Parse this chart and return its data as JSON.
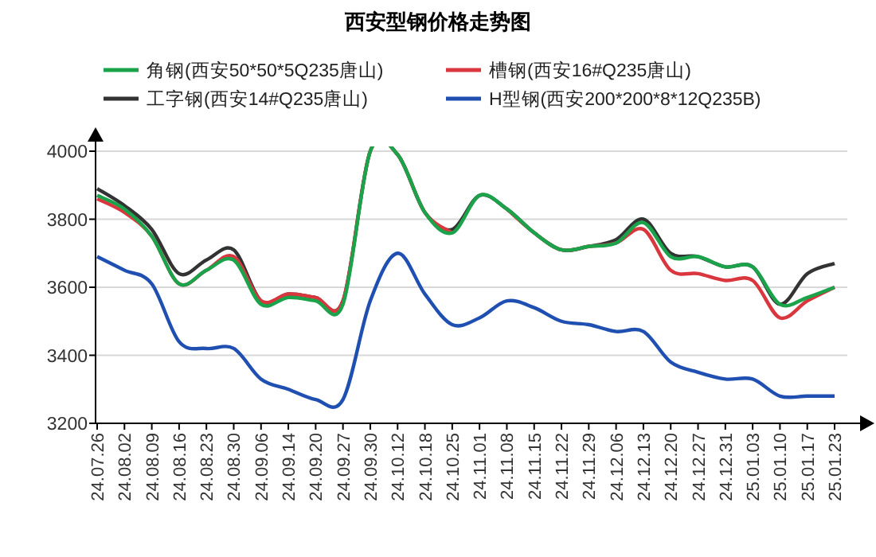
{
  "chart_data": {
    "type": "line",
    "title": "西安型钢价格走势图",
    "categories": [
      "24.07.26",
      "24.08.02",
      "24.08.09",
      "24.08.16",
      "24.08.23",
      "24.08.30",
      "24.09.06",
      "24.09.14",
      "24.09.20",
      "24.09.27",
      "24.09.30",
      "24.10.12",
      "24.10.18",
      "24.10.25",
      "24.11.01",
      "24.11.08",
      "24.11.15",
      "24.11.22",
      "24.11.29",
      "24.12.06",
      "24.12.13",
      "24.12.20",
      "24.12.27",
      "24.12.31",
      "25.01.03",
      "25.01.10",
      "25.01.17",
      "25.01.23"
    ],
    "series": [
      {
        "name": "工字钢(西安14#Q235唐山)",
        "color": "#333333",
        "values": [
          3890,
          3840,
          3770,
          3640,
          3680,
          3710,
          3560,
          3580,
          3570,
          3560,
          4000,
          3990,
          3820,
          3770,
          3870,
          3830,
          3760,
          3710,
          3720,
          3740,
          3800,
          3700,
          3690,
          3660,
          3660,
          3550,
          3640,
          3670
        ]
      },
      {
        "name": "槽钢(西安16#Q235唐山)",
        "color": "#d9363e",
        "values": [
          3860,
          3820,
          3750,
          3610,
          3650,
          3690,
          3560,
          3580,
          3570,
          3560,
          4000,
          3990,
          3820,
          3760,
          null,
          3830,
          3760,
          3710,
          3720,
          3730,
          3770,
          3650,
          3640,
          3620,
          3620,
          3510,
          3560,
          3600
        ]
      },
      {
        "name": "角钢(西安50*50*5Q235唐山)",
        "color": "#1aa34a",
        "values": [
          3870,
          3830,
          3750,
          3610,
          3650,
          3680,
          3550,
          3570,
          3560,
          3550,
          4000,
          3990,
          3820,
          3760,
          3870,
          3830,
          3760,
          3710,
          3720,
          3730,
          3790,
          3690,
          3690,
          3660,
          3660,
          3550,
          3570,
          3600
        ]
      },
      {
        "name": "H型钢(西安200*200*8*12Q235B)",
        "color": "#1f4fb0",
        "values": [
          3690,
          3650,
          3610,
          3440,
          3420,
          3420,
          3330,
          3300,
          3270,
          3270,
          3560,
          3700,
          3580,
          3490,
          3510,
          3560,
          3540,
          3500,
          3490,
          3470,
          3470,
          3380,
          3350,
          3330,
          3330,
          3280,
          3280,
          3280
        ]
      }
    ],
    "ylim": [
      3200,
      4000
    ],
    "yticks": [
      3200,
      3400,
      3600,
      3800,
      4000
    ],
    "grid": "y",
    "legend": "top",
    "marker": "none",
    "line_style": "solid"
  }
}
